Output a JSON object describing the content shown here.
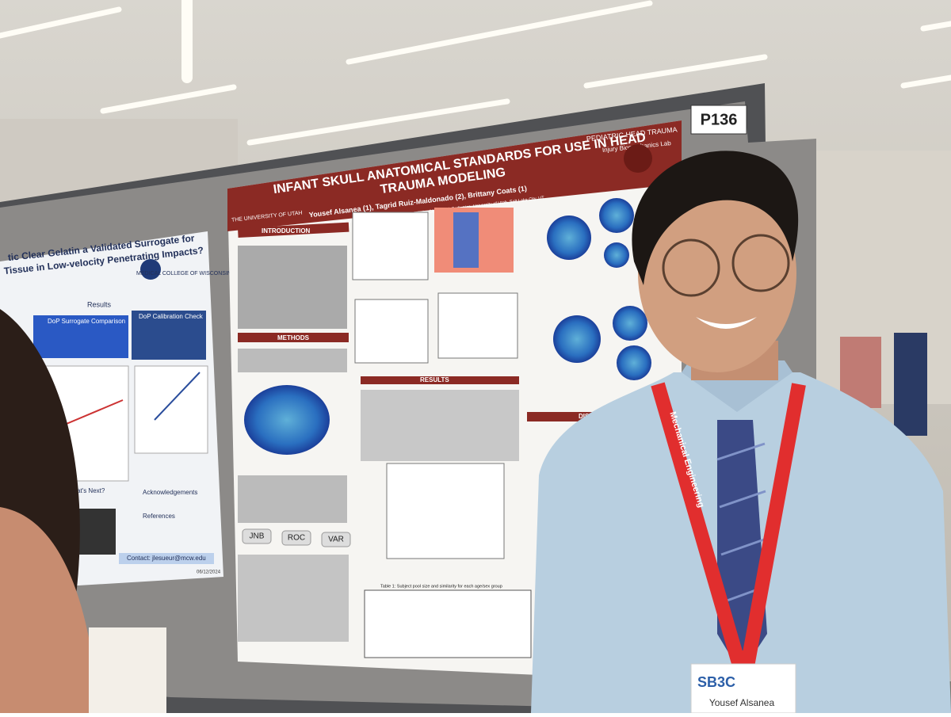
{
  "poster_number": "P136",
  "left_poster": {
    "title_line1": "tic Clear Gelatin a Validated Surrogate for",
    "title_line2": "Tissue in Low-velocity Penetrating Impacts?",
    "institution": "MEDICAL COLLEGE OF WISCONSIN",
    "sections": [
      "Results",
      "DoP Surrogate Comparison",
      "DoP Calibration Check",
      "What's Next?",
      "Acknowledgements",
      "References"
    ],
    "contact": "Contact: jlesueur@mcw.edu",
    "date": "06/12/2024"
  },
  "main_poster": {
    "title_line1": "INFANT SKULL ANATOMICAL STANDARDS FOR USE IN HEAD",
    "title_line2": "TRAUMA MODELING",
    "authors": "Yousef Alsanea (1), Tagrid Ruiz-Maldonado (2), Brittany Coats (1)",
    "affiliations": "(1) Department of Mechanical Engineering, University of Utah, Salt Lake City, UT (2) Pediatrics, University of Utah, Salt Lake City, UT",
    "university": "THE UNIVERSITY OF UTAH",
    "lab_title": "PEDIATRIC HEAD TRAUMA",
    "lab_subtitle": "Injury Biomechanics Lab",
    "sections": [
      "INTRODUCTION",
      "METHODS",
      "RESULTS",
      "DISCU"
    ],
    "pipeline": [
      "JNB",
      "ROC",
      "VAR"
    ],
    "table_caption": "Table 1: Subject pool size and similarity for each age/sex group"
  },
  "lanyard": "Mechanical Engineering",
  "badge": {
    "logo": "SB3C",
    "name": "Yousef Alsanea"
  }
}
